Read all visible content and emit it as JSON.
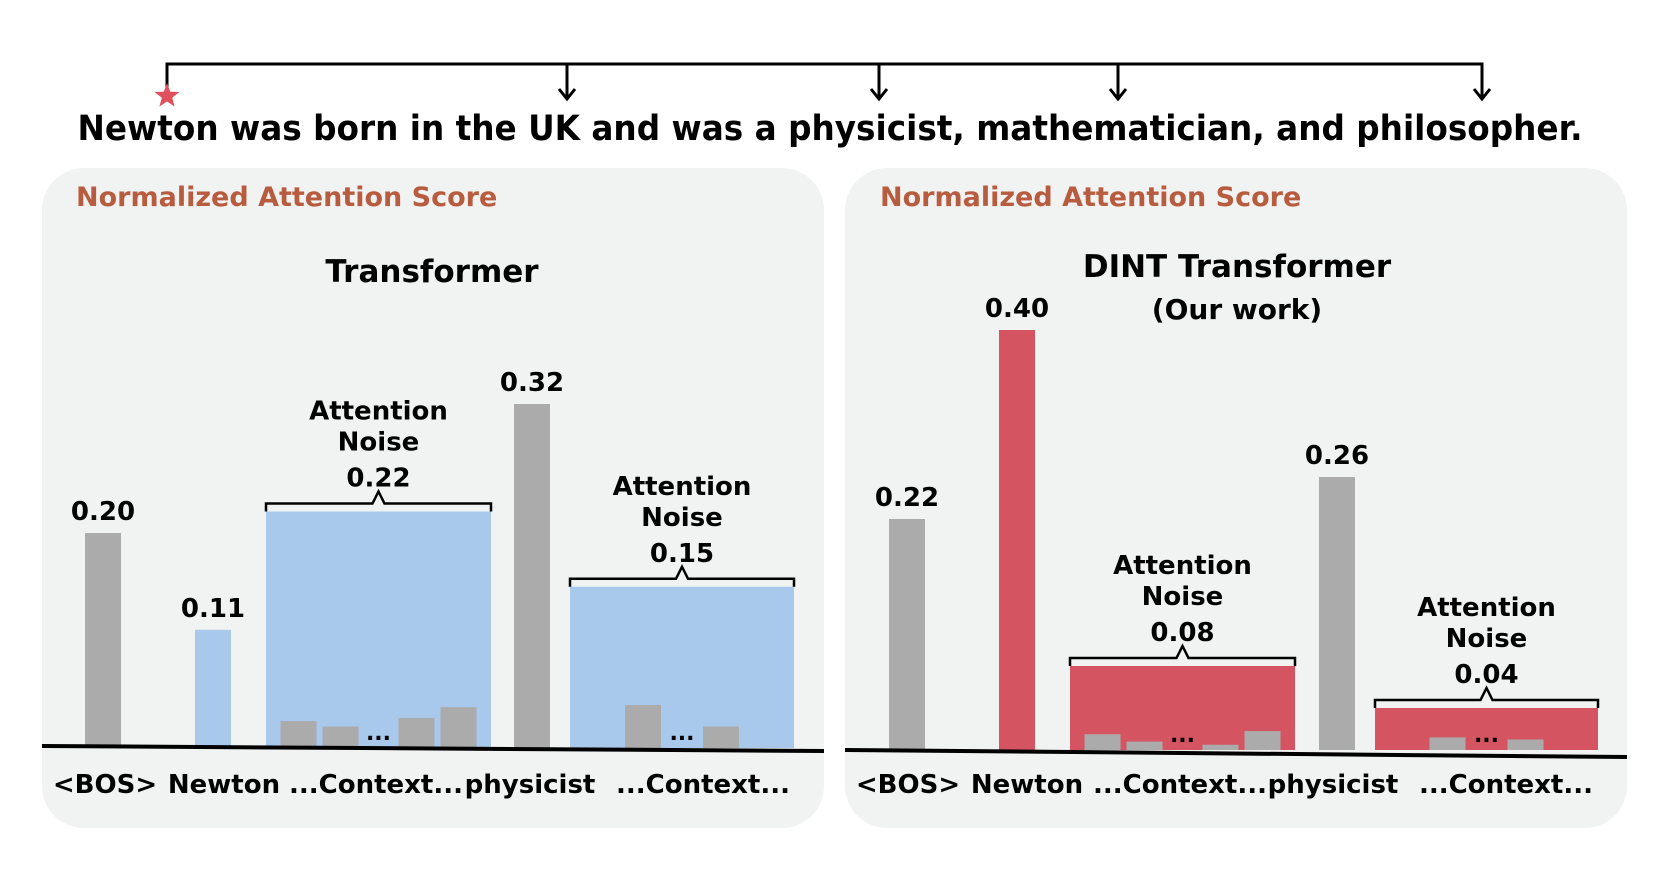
{
  "sentence": "Newton was born in the UK and was a physicist, mathematician, and philosopher.",
  "panel_header": "Normalized Attention Score",
  "colors": {
    "gray_bar": "#ababab",
    "blue_bar": "#a8c9ec",
    "red_bar": "#d45561",
    "header_text": "#b85c3f",
    "star": "#e0505e",
    "panel_bg": "#f1f2f2"
  },
  "chart_data": [
    {
      "type": "bar",
      "title": "Transformer",
      "subtitle": "",
      "categories": [
        "<BOS>",
        "Newton",
        "...Context...",
        "physicist",
        "...Context..."
      ],
      "values": [
        0.2,
        0.11,
        0.22,
        0.32,
        0.15
      ],
      "value_labels": [
        "0.20",
        "0.11",
        "0.22",
        "0.32",
        "0.15"
      ],
      "bar_colors": [
        "gray",
        "blue",
        "blue",
        "gray",
        "blue"
      ],
      "noise_groups": [
        {
          "index": 2,
          "label_line1": "Attention",
          "label_line2": "Noise",
          "value": 0.22,
          "inner_bar_values": [
            0.025,
            0.02,
            0.028,
            0.038
          ],
          "ellipsis": "..."
        },
        {
          "index": 4,
          "label_line1": "Attention",
          "label_line2": "Noise",
          "value": 0.15,
          "inner_bar_values": [
            0.04,
            0.02
          ],
          "ellipsis": "..."
        }
      ],
      "ylim": [
        0,
        0.4
      ]
    },
    {
      "type": "bar",
      "title": "DINT Transformer",
      "subtitle": "(Our work)",
      "categories": [
        "<BOS>",
        "Newton",
        "...Context...",
        "physicist",
        "...Context..."
      ],
      "values": [
        0.22,
        0.4,
        0.08,
        0.26,
        0.04
      ],
      "value_labels": [
        "0.22",
        "0.40",
        "0.08",
        "0.26",
        "0.04"
      ],
      "bar_colors": [
        "gray",
        "red",
        "red",
        "gray",
        "red"
      ],
      "noise_groups": [
        {
          "index": 2,
          "label_line1": "Attention",
          "label_line2": "Noise",
          "value": 0.08,
          "inner_bar_values": [
            0.015,
            0.008,
            0.005,
            0.018
          ],
          "ellipsis": "..."
        },
        {
          "index": 4,
          "label_line1": "Attention",
          "label_line2": "Noise",
          "value": 0.04,
          "inner_bar_values": [
            0.012,
            0.01
          ],
          "ellipsis": "..."
        }
      ],
      "ylim": [
        0,
        0.4
      ]
    }
  ]
}
